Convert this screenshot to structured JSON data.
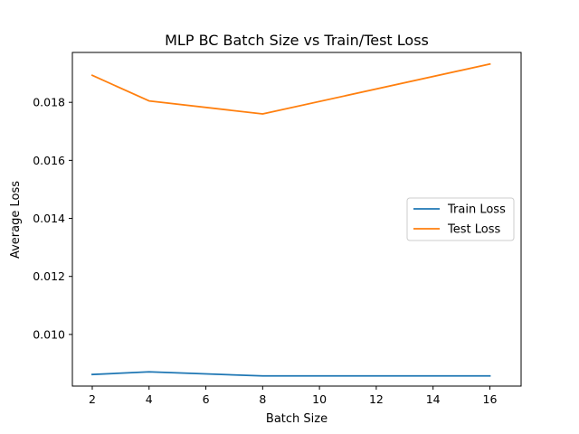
{
  "chart_data": {
    "type": "line",
    "title": "MLP BC Batch Size vs Train/Test Loss",
    "xlabel": "Batch Size",
    "ylabel": "Average Loss",
    "x": [
      2,
      4,
      8,
      16
    ],
    "xticks": [
      2,
      4,
      6,
      8,
      10,
      12,
      14,
      16
    ],
    "yticks": [
      0.01,
      0.012,
      0.014,
      0.016,
      0.018
    ],
    "ytick_labels": [
      "0.010",
      "0.012",
      "0.014",
      "0.016",
      "0.018"
    ],
    "xlim": [
      1.3,
      17.1
    ],
    "ylim": [
      0.00822,
      0.01972
    ],
    "grid": false,
    "legend_position": "center-right",
    "series": [
      {
        "name": "Train Loss",
        "color": "#1f77b4",
        "values": [
          0.00862,
          0.00871,
          0.00857,
          0.00857
        ]
      },
      {
        "name": "Test Loss",
        "color": "#ff7f0e",
        "values": [
          0.01893,
          0.01805,
          0.0176,
          0.01932
        ]
      }
    ]
  }
}
